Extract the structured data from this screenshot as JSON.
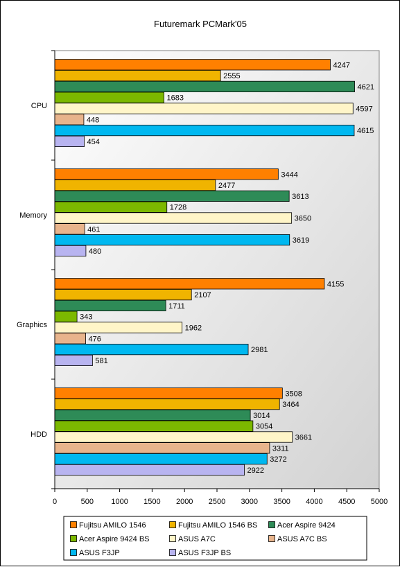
{
  "chart_data": {
    "type": "bar",
    "orientation": "horizontal",
    "title": "Futuremark PCMark'05",
    "xlabel": "",
    "ylabel": "",
    "categories": [
      "CPU",
      "Memory",
      "Graphics",
      "HDD"
    ],
    "xlim": [
      0,
      5000
    ],
    "x_ticks": [
      "0",
      "500",
      "1000",
      "1500",
      "2000",
      "2500",
      "3000",
      "3500",
      "4000",
      "4500",
      "5000"
    ],
    "grid": false,
    "legend_position": "bottom",
    "series": [
      {
        "name": "Fujitsu AMILO 1546",
        "color": "#FF8000",
        "values": [
          4247,
          3444,
          4155,
          3508
        ]
      },
      {
        "name": "Fujitsu AMILO 1546 BS",
        "color": "#F0B400",
        "values": [
          2555,
          2477,
          2107,
          3464
        ]
      },
      {
        "name": "Acer Aspire 9424",
        "color": "#2E8B57",
        "values": [
          4621,
          3613,
          1711,
          3014
        ]
      },
      {
        "name": "Acer Aspire 9424 BS",
        "color": "#7CB800",
        "values": [
          1683,
          1728,
          343,
          3054
        ]
      },
      {
        "name": "ASUS A7C",
        "color": "#FFF5C8",
        "values": [
          4597,
          3650,
          1962,
          3661
        ]
      },
      {
        "name": "ASUS A7C BS",
        "color": "#E8B48C",
        "values": [
          448,
          461,
          476,
          3311
        ]
      },
      {
        "name": "ASUS F3JP",
        "color": "#00B8F0",
        "values": [
          4615,
          3619,
          2981,
          3272
        ]
      },
      {
        "name": "ASUS F3JP BS",
        "color": "#B8B4F0",
        "values": [
          454,
          480,
          581,
          2922
        ]
      }
    ]
  }
}
